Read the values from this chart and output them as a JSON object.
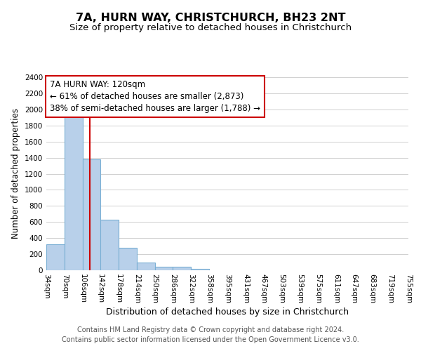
{
  "title": "7A, HURN WAY, CHRISTCHURCH, BH23 2NT",
  "subtitle": "Size of property relative to detached houses in Christchurch",
  "xlabel": "Distribution of detached houses by size in Christchurch",
  "ylabel": "Number of detached properties",
  "bin_edges": [
    34,
    70,
    106,
    142,
    178,
    214,
    250,
    286,
    322,
    358,
    395,
    431,
    467,
    503,
    539,
    575,
    611,
    647,
    683,
    719,
    755
  ],
  "bin_labels": [
    "34sqm",
    "70sqm",
    "106sqm",
    "142sqm",
    "178sqm",
    "214sqm",
    "250sqm",
    "286sqm",
    "322sqm",
    "358sqm",
    "395sqm",
    "431sqm",
    "467sqm",
    "503sqm",
    "539sqm",
    "575sqm",
    "611sqm",
    "647sqm",
    "683sqm",
    "719sqm",
    "755sqm"
  ],
  "counts": [
    320,
    1950,
    1380,
    630,
    275,
    95,
    45,
    45,
    20,
    0,
    0,
    0,
    0,
    0,
    0,
    0,
    0,
    0,
    0,
    0
  ],
  "bar_color": "#b8d0ea",
  "bar_edge_color": "#7aafd4",
  "property_line_x": 120,
  "property_line_color": "#cc0000",
  "ylim": [
    0,
    2400
  ],
  "yticks": [
    0,
    200,
    400,
    600,
    800,
    1000,
    1200,
    1400,
    1600,
    1800,
    2000,
    2200,
    2400
  ],
  "annotation_line1": "7A HURN WAY: 120sqm",
  "annotation_line2": "← 61% of detached houses are smaller (2,873)",
  "annotation_line3": "38% of semi-detached houses are larger (1,788) →",
  "annotation_box_color": "#ffffff",
  "annotation_box_edge_color": "#cc0000",
  "footer_line1": "Contains HM Land Registry data © Crown copyright and database right 2024.",
  "footer_line2": "Contains public sector information licensed under the Open Government Licence v3.0.",
  "background_color": "#ffffff",
  "grid_color": "#d0d0d0",
  "title_fontsize": 11.5,
  "subtitle_fontsize": 9.5,
  "xlabel_fontsize": 9,
  "ylabel_fontsize": 8.5,
  "tick_fontsize": 7.5,
  "annotation_fontsize": 8.5,
  "footer_fontsize": 7
}
